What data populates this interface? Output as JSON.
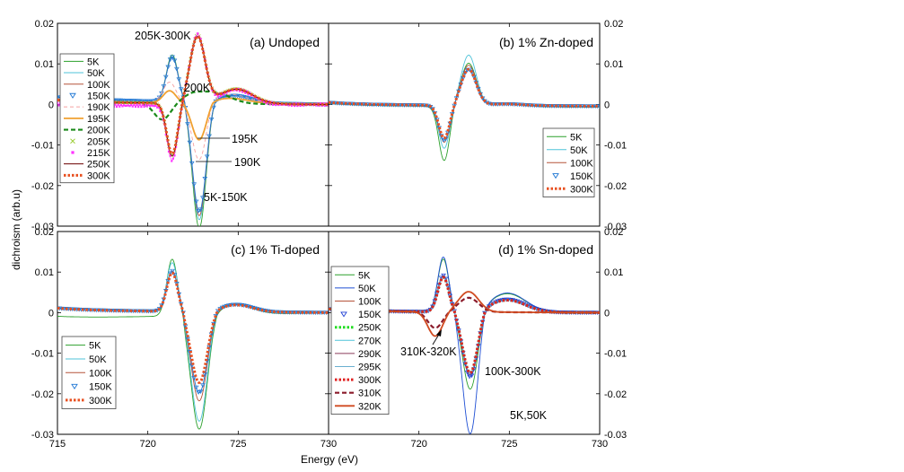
{
  "figure": {
    "xlabel": "Energy (eV)",
    "ylabel": "dichroism (arb.u)",
    "x_ticks": [
      715,
      720,
      725,
      730
    ],
    "y_ticks": [
      0.02,
      0.01,
      0,
      -0.01,
      -0.02,
      -0.03
    ],
    "colors": {
      "5K": "#2ca02c",
      "50K": "#4fc3d9",
      "100K": "#b5533a",
      "150K": "#1f77d4",
      "190K": "#f5a0a0",
      "195K": "#f0a030",
      "200K": "#1a8a1a",
      "205K": "#9acd32",
      "215K": "#ff33ff",
      "250K": "#6b0000",
      "300K": "#e85020"
    }
  },
  "chart_data": [
    {
      "type": "line",
      "title": "(a) Undoped",
      "xlim": [
        715,
        730
      ],
      "ylim": [
        -0.03,
        0.02
      ],
      "xlabel": "Energy (eV)",
      "ylabel": "dichroism (arb.u)",
      "legend_position": "left",
      "series": [
        {
          "name": "5K",
          "color": "#2ca02c",
          "style": "thin",
          "profile": "A",
          "peak_pos": 0.0115,
          "peak_neg": -0.031,
          "tail": 0.0012
        },
        {
          "name": "50K",
          "color": "#4fc3d9",
          "style": "thin",
          "profile": "A",
          "peak_pos": 0.011,
          "peak_neg": -0.029,
          "tail": 0.0012
        },
        {
          "name": "100K",
          "color": "#b5533a",
          "style": "thin",
          "profile": "A",
          "peak_pos": 0.011,
          "peak_neg": -0.028,
          "tail": 0.0012
        },
        {
          "name": "150K",
          "color": "#1f77d4",
          "style": "markers",
          "profile": "A",
          "peak_pos": 0.011,
          "peak_neg": -0.027,
          "tail": 0.0012
        },
        {
          "name": "190K",
          "color": "#f5a0a0",
          "style": "dash",
          "profile": "C",
          "peak_pos": 0.005,
          "peak_neg": -0.014,
          "tail": 0.0008
        },
        {
          "name": "195K",
          "color": "#f0a030",
          "style": "thick",
          "profile": "C",
          "peak_pos": 0.003,
          "peak_neg": -0.009,
          "tail": 0.0006
        },
        {
          "name": "200K",
          "color": "#1a8a1a",
          "style": "dashthick",
          "profile": "D",
          "peak_pos": 0.003,
          "peak_neg": -0.004,
          "tail": 0.0004
        },
        {
          "name": "205K",
          "color": "#9acd32",
          "style": "xmark",
          "profile": "B",
          "peak_pos": 0.017,
          "peak_neg": -0.013,
          "tail": 0.0005
        },
        {
          "name": "215K",
          "color": "#ff33ff",
          "style": "squares",
          "profile": "B",
          "peak_pos": 0.0175,
          "peak_neg": -0.0135,
          "tail": -0.0005
        },
        {
          "name": "250K",
          "color": "#6b0000",
          "style": "thin",
          "profile": "B",
          "peak_pos": 0.0165,
          "peak_neg": -0.013,
          "tail": 0.0005
        },
        {
          "name": "300K",
          "color": "#e85020",
          "style": "dotted",
          "profile": "B",
          "peak_pos": 0.0165,
          "peak_neg": -0.0125,
          "tail": 0.0005
        }
      ],
      "annotations": [
        "205K-300K",
        "200K",
        "195K",
        "190K",
        "5K-150K"
      ]
    },
    {
      "type": "line",
      "title": "(b) 1% Zn-doped",
      "xlim": [
        715,
        730
      ],
      "ylim": [
        -0.03,
        0.02
      ],
      "legend_position": "middle-right",
      "series": [
        {
          "name": "5K",
          "color": "#2ca02c",
          "style": "thin",
          "profile": "E",
          "peak_pos": 0.01,
          "peak_neg": -0.014,
          "tail": 0.0003
        },
        {
          "name": "50K",
          "color": "#4fc3d9",
          "style": "thin",
          "profile": "E",
          "peak_pos": 0.012,
          "peak_neg": -0.011,
          "tail": 0.0003
        },
        {
          "name": "100K",
          "color": "#b5533a",
          "style": "thin",
          "profile": "E",
          "peak_pos": 0.0095,
          "peak_neg": -0.0095,
          "tail": 0.0003
        },
        {
          "name": "150K",
          "color": "#1f77d4",
          "style": "markers",
          "profile": "E",
          "peak_pos": 0.0085,
          "peak_neg": -0.009,
          "tail": 0.0003
        },
        {
          "name": "300K",
          "color": "#e85020",
          "style": "dotted",
          "profile": "E",
          "peak_pos": 0.0085,
          "peak_neg": -0.0085,
          "tail": 0.0003
        }
      ],
      "annotations": []
    },
    {
      "type": "line",
      "title": "(c) 1% Ti-doped",
      "xlim": [
        715,
        730
      ],
      "ylim": [
        -0.03,
        0.02
      ],
      "legend_position": "bottom-left",
      "series": [
        {
          "name": "5K",
          "color": "#2ca02c",
          "style": "thin",
          "profile": "F",
          "peak_pos": 0.014,
          "peak_neg": -0.028,
          "tail": -0.0015
        },
        {
          "name": "50K",
          "color": "#4fc3d9",
          "style": "thin",
          "profile": "F",
          "peak_pos": 0.012,
          "peak_neg": -0.027,
          "tail": 0.0005
        },
        {
          "name": "100K",
          "color": "#b5533a",
          "style": "thin",
          "profile": "F",
          "peak_pos": 0.01,
          "peak_neg": -0.022,
          "tail": 0.0005
        },
        {
          "name": "150K",
          "color": "#1f77d4",
          "style": "markers",
          "profile": "F",
          "peak_pos": 0.01,
          "peak_neg": -0.02,
          "tail": 0.0005
        },
        {
          "name": "300K",
          "color": "#e85020",
          "style": "dotted",
          "profile": "F",
          "peak_pos": 0.0095,
          "peak_neg": -0.0175,
          "tail": 0.0005
        }
      ],
      "annotations": []
    },
    {
      "type": "line",
      "title": "(d) 1% Sn-doped",
      "xlim": [
        715,
        730
      ],
      "ylim": [
        -0.03,
        0.02
      ],
      "legend_position": "left",
      "series": [
        {
          "name": "5K",
          "color": "#2ca02c",
          "style": "thin",
          "profile": "G",
          "peak_pos": 0.013,
          "peak_neg": -0.019,
          "tail": 0.0003
        },
        {
          "name": "50K",
          "color": "#1f4fd4",
          "style": "thin",
          "profile": "G",
          "peak_pos": 0.0135,
          "peak_neg": -0.03,
          "tail": 0.0003
        },
        {
          "name": "100K",
          "color": "#b5533a",
          "style": "thin",
          "profile": "G",
          "peak_pos": 0.009,
          "peak_neg": -0.0155,
          "tail": 0.0003
        },
        {
          "name": "150K",
          "color": "#1f3fd4",
          "style": "markers",
          "profile": "G",
          "peak_pos": 0.009,
          "peak_neg": -0.016,
          "tail": 0.0003
        },
        {
          "name": "250K",
          "color": "#22dd22",
          "style": "dotted",
          "profile": "G",
          "peak_pos": 0.0085,
          "peak_neg": -0.015,
          "tail": 0.0003
        },
        {
          "name": "270K",
          "color": "#4fc3d9",
          "style": "thin",
          "profile": "G",
          "peak_pos": 0.0085,
          "peak_neg": -0.015,
          "tail": 0.0003
        },
        {
          "name": "290K",
          "color": "#8a3a5a",
          "style": "thin",
          "profile": "G",
          "peak_pos": 0.0085,
          "peak_neg": -0.015,
          "tail": 0.0003
        },
        {
          "name": "295K",
          "color": "#6ab0d0",
          "style": "thin",
          "profile": "G",
          "peak_pos": 0.0085,
          "peak_neg": -0.015,
          "tail": 0.0003
        },
        {
          "name": "300K",
          "color": "#e02020",
          "style": "dotted",
          "profile": "G",
          "peak_pos": 0.0085,
          "peak_neg": -0.015,
          "tail": 0.0003
        },
        {
          "name": "310K",
          "color": "#8a1a2a",
          "style": "dashthick",
          "profile": "H",
          "peak_pos": 0.0035,
          "peak_neg": -0.004,
          "tail": 0.0003
        },
        {
          "name": "320K",
          "color": "#d04a20",
          "style": "thick",
          "profile": "H",
          "peak_pos": 0.005,
          "peak_neg": -0.006,
          "tail": 0.0003
        }
      ],
      "annotations": [
        "310K-320K",
        "100K-300K",
        "5K,50K"
      ]
    }
  ]
}
